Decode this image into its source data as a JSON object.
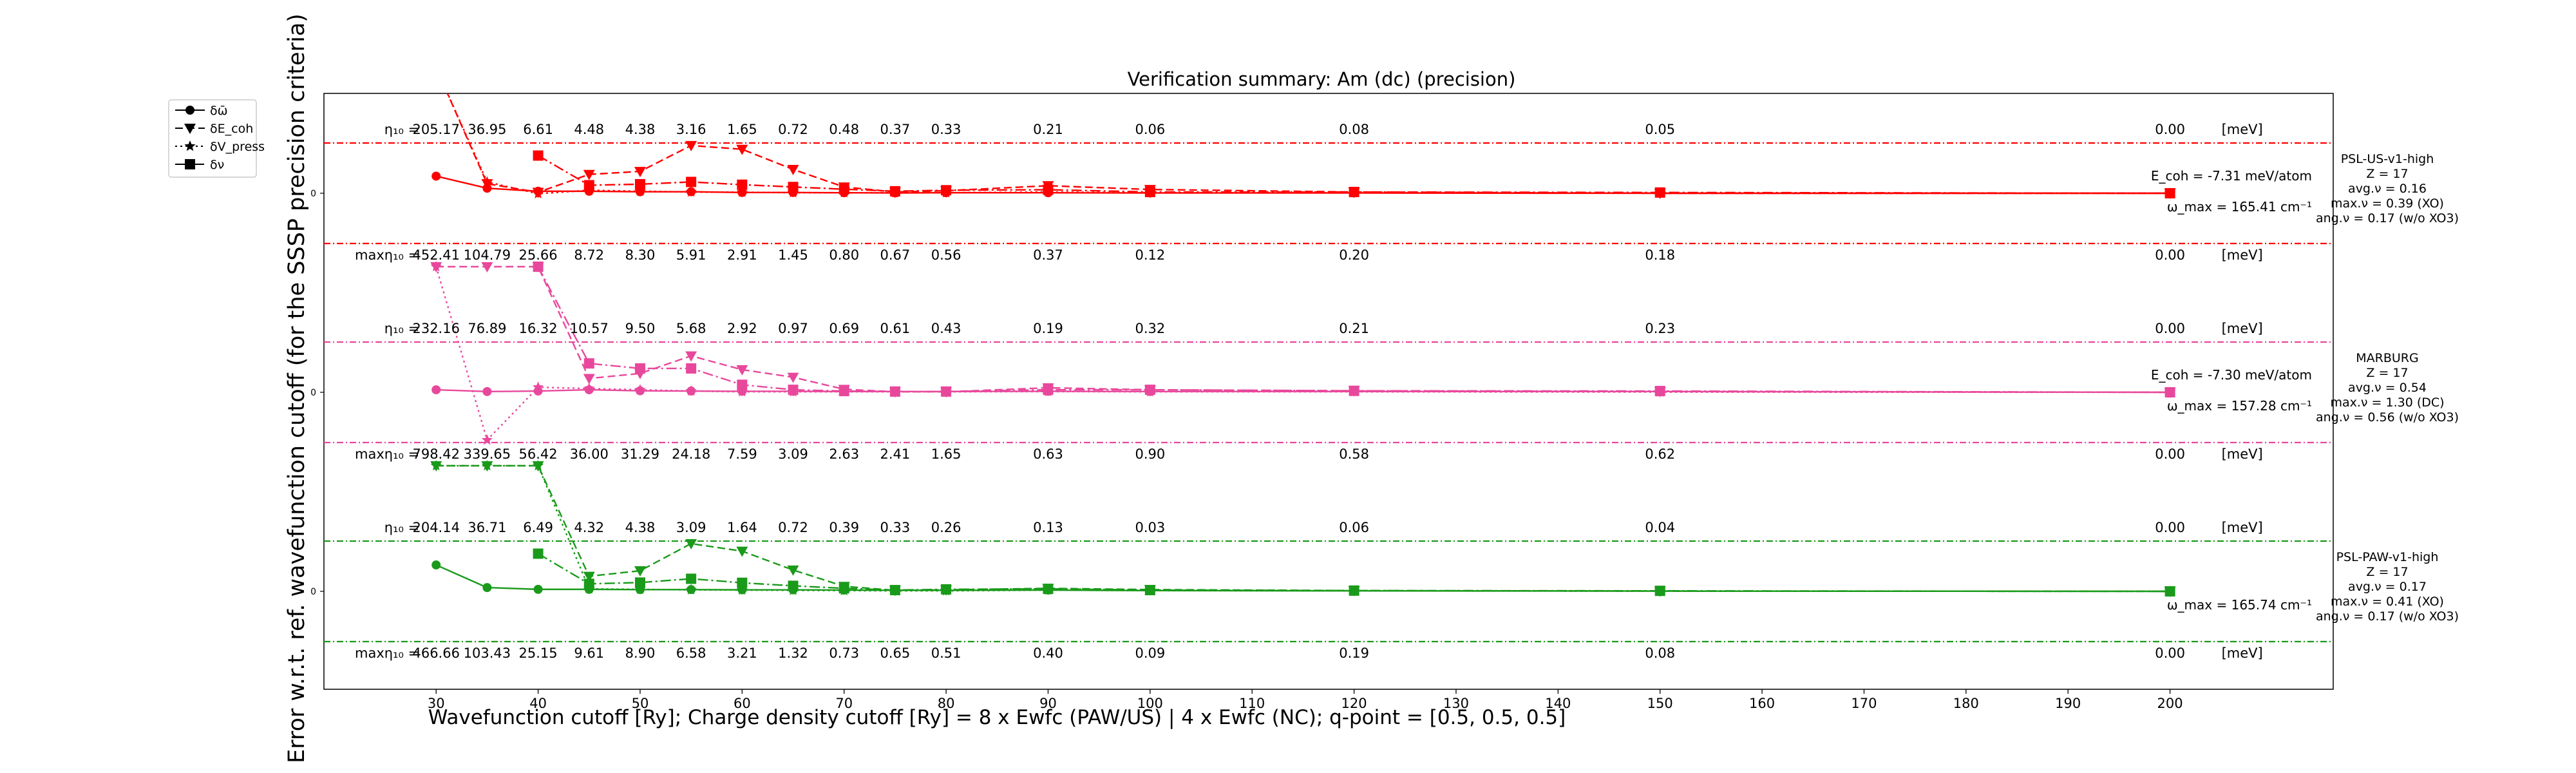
{
  "chart_data": {
    "type": "line",
    "title": "Verification summary: Am (dc) (precision)",
    "xlabel": "Wavefunction cutoff [Ry]; Charge density cutoff [Ry] = 8 x Ewfc (PAW/US) | 4 x Ewfc (NC); q-point = [0.5, 0.5, 0.5]",
    "ylabel": "Error w.r.t. ref. wavefunction cutoff (for the SSSP precision criteria)",
    "xlim": [
      19,
      216
    ],
    "x_ticks": [
      30,
      40,
      50,
      60,
      70,
      80,
      90,
      100,
      110,
      120,
      130,
      140,
      150,
      160,
      170,
      180,
      190,
      200
    ],
    "grid": false,
    "legend": {
      "placement": "upper-left-outside",
      "entries": [
        "δω̄",
        "δE_coh",
        "δV_press",
        "δν"
      ]
    },
    "eta_prefix": "η₁₀ =",
    "max_prefix": "maxη₁₀ =",
    "unit_label": "[meV]",
    "zero_tick": "0",
    "x_cutoffs": [
      30,
      35,
      40,
      45,
      50,
      55,
      60,
      65,
      70,
      75,
      80,
      90,
      100,
      120,
      150,
      200
    ],
    "panels": [
      {
        "name": "PSL-US-v1-high",
        "color": "#ff0000",
        "info": [
          "PSL-US-v1-high",
          "Z = 17",
          "avg.ν = 0.16",
          "max.ν = 0.39 (XO)",
          "ang.ν = 0.17 (w/o XO3)"
        ],
        "ecoh_text": "E_coh = -7.31 meV/atom",
        "omega_text": "ω_max = 165.41 cm⁻¹",
        "eta_values": [
          "205.17",
          "36.95",
          "6.61",
          "4.48",
          "4.38",
          "3.16",
          "1.65",
          "0.72",
          "0.48",
          "0.37",
          "0.33",
          "0.21",
          "0.06",
          "0.08",
          "0.05",
          "0.00"
        ],
        "max_values": [
          "452.41",
          "104.79",
          "25.66",
          "8.72",
          "8.30",
          "5.91",
          "2.91",
          "1.45",
          "0.80",
          "0.67",
          "0.56",
          "0.37",
          "0.12",
          "0.20",
          "0.18",
          "0.00"
        ],
        "series": [
          {
            "name": "δω̄",
            "values": [
              0.68,
              0.2,
              0.08,
              0.08,
              0.06,
              0.06,
              0.03,
              0.03,
              0.02,
              0.01,
              0.02,
              0.02,
              0.01,
              0.01,
              0.0,
              0.0
            ]
          },
          {
            "name": "δE_coh",
            "values": [
              5.0,
              0.38,
              0.04,
              0.75,
              0.87,
              1.9,
              1.75,
              0.95,
              0.25,
              0.05,
              0.1,
              0.3,
              0.15,
              0.05,
              0.0,
              0.0
            ]
          },
          {
            "name": "δV_press",
            "values": [
              5.0,
              0.45,
              -0.02,
              0.12,
              0.08,
              0.05,
              0.04,
              0.02,
              0.02,
              0.02,
              0.02,
              0.05,
              0.02,
              0.02,
              0.0,
              0.0
            ]
          },
          {
            "name": "δν",
            "values": [
              null,
              null,
              1.5,
              0.32,
              0.36,
              0.45,
              0.34,
              0.25,
              0.16,
              0.08,
              0.12,
              0.14,
              0.05,
              0.05,
              0.03,
              0.0
            ]
          }
        ]
      },
      {
        "name": "MARBURG",
        "color": "#e8489c",
        "info": [
          "MARBURG",
          "Z = 17",
          "avg.ν = 0.54",
          "max.ν = 1.30 (DC)",
          "ang.ν = 0.56 (w/o XO3)"
        ],
        "ecoh_text": "E_coh = -7.30 meV/atom",
        "omega_text": "ω_max = 157.28 cm⁻¹",
        "eta_values": [
          "232.16",
          "76.89",
          "16.32",
          "10.57",
          "9.50",
          "5.68",
          "2.92",
          "0.97",
          "0.69",
          "0.61",
          "0.43",
          "0.19",
          "0.32",
          "0.21",
          "0.23",
          "0.00"
        ],
        "max_values": [
          "798.42",
          "339.65",
          "56.42",
          "36.00",
          "31.29",
          "24.18",
          "7.59",
          "3.09",
          "2.63",
          "2.41",
          "1.65",
          "0.63",
          "0.90",
          "0.58",
          "0.62",
          "0.00"
        ],
        "series": [
          {
            "name": "δω̄",
            "values": [
              0.1,
              0.03,
              0.05,
              0.1,
              0.06,
              0.05,
              0.04,
              0.04,
              0.03,
              0.03,
              0.03,
              0.04,
              0.03,
              0.03,
              0.03,
              0.0
            ]
          },
          {
            "name": "δE_coh",
            "values": [
              5.0,
              5.0,
              5.0,
              0.55,
              0.75,
              1.45,
              0.9,
              0.6,
              0.12,
              0.02,
              0.02,
              0.18,
              0.1,
              0.06,
              0.03,
              0.0
            ]
          },
          {
            "name": "δV_press",
            "values": [
              5.0,
              -1.9,
              0.2,
              0.15,
              0.1,
              0.05,
              0.02,
              0.02,
              0.02,
              0.02,
              0.02,
              0.03,
              0.02,
              0.02,
              0.01,
              0.0
            ]
          },
          {
            "name": "δν",
            "values": [
              null,
              null,
              5.0,
              1.15,
              0.95,
              0.95,
              0.3,
              0.1,
              0.05,
              0.03,
              0.03,
              0.1,
              0.1,
              0.06,
              0.05,
              0.0
            ]
          }
        ]
      },
      {
        "name": "PSL-PAW-v1-high",
        "color": "#1a9a1a",
        "info": [
          "PSL-PAW-v1-high",
          "Z = 17",
          "avg.ν = 0.17",
          "max.ν = 0.41 (XO)",
          "ang.ν = 0.17 (w/o XO3)"
        ],
        "ecoh_text": "",
        "omega_text": "ω_max = 165.74 cm⁻¹",
        "eta_values": [
          "204.14",
          "36.71",
          "6.49",
          "4.32",
          "4.38",
          "3.09",
          "1.64",
          "0.72",
          "0.39",
          "0.33",
          "0.26",
          "0.13",
          "0.03",
          "0.06",
          "0.04",
          "0.00"
        ],
        "max_values": [
          "466.66",
          "103.43",
          "25.15",
          "9.61",
          "8.90",
          "6.58",
          "3.21",
          "1.32",
          "0.73",
          "0.65",
          "0.51",
          "0.40",
          "0.09",
          "0.19",
          "0.08",
          "0.00"
        ],
        "series": [
          {
            "name": "δω̄",
            "values": [
              1.05,
              0.15,
              0.08,
              0.08,
              0.07,
              0.07,
              0.06,
              0.06,
              0.05,
              0.04,
              0.04,
              0.05,
              0.03,
              0.02,
              0.01,
              0.0
            ]
          },
          {
            "name": "δE_coh",
            "values": [
              5.0,
              5.0,
              5.0,
              0.6,
              0.82,
              1.9,
              1.6,
              0.85,
              0.2,
              0.04,
              0.06,
              0.12,
              0.07,
              0.03,
              0.01,
              0.0
            ]
          },
          {
            "name": "δV_press",
            "values": [
              5.0,
              5.0,
              5.0,
              0.1,
              0.08,
              0.06,
              0.05,
              0.04,
              0.03,
              0.02,
              0.02,
              0.05,
              0.03,
              0.02,
              0.01,
              0.0
            ]
          },
          {
            "name": "δν",
            "values": [
              null,
              null,
              1.5,
              0.3,
              0.35,
              0.5,
              0.34,
              0.22,
              0.12,
              0.05,
              0.08,
              0.1,
              0.05,
              0.03,
              0.02,
              0.0
            ]
          }
        ]
      }
    ]
  }
}
